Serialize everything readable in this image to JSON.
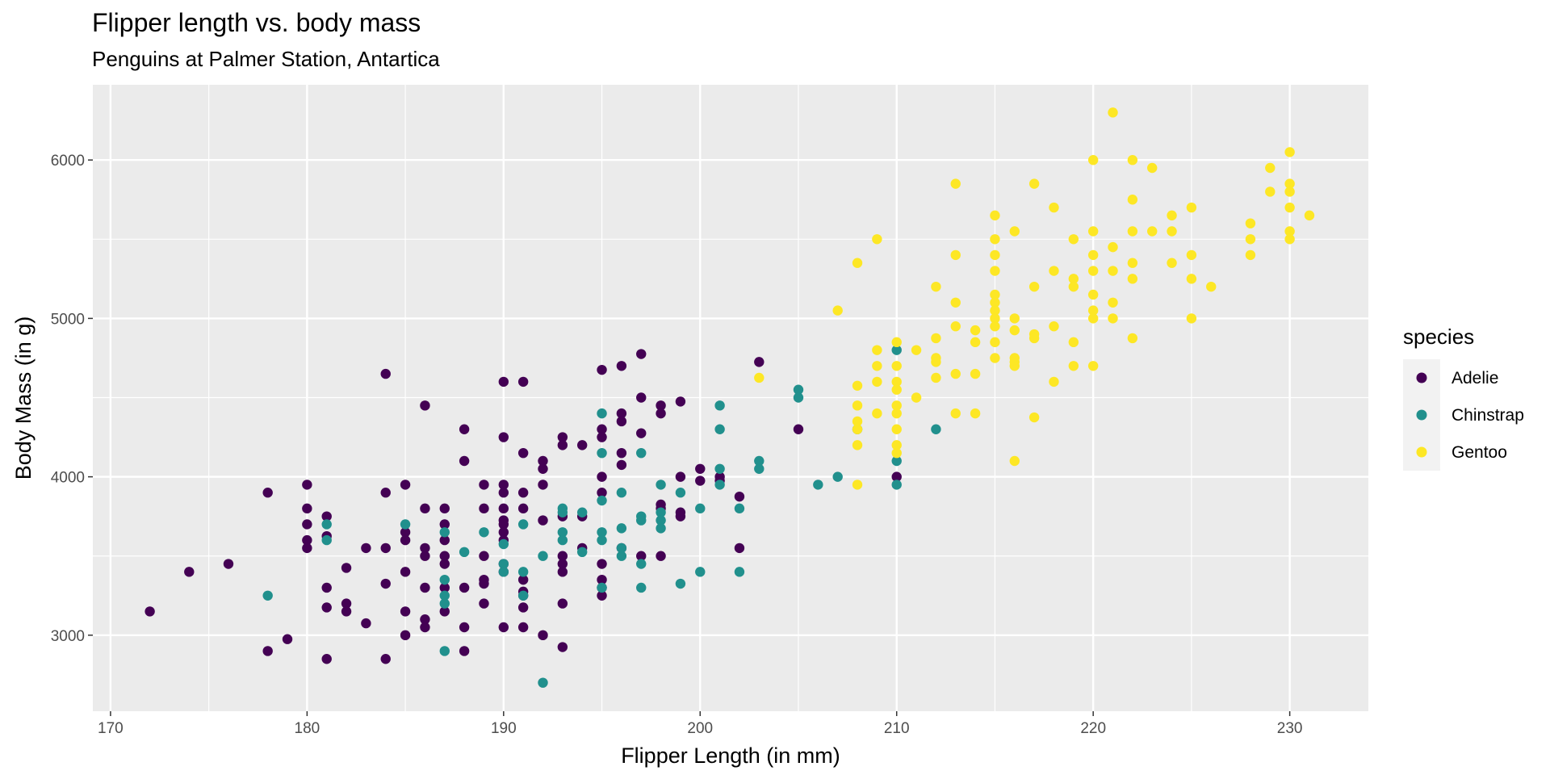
{
  "chart_data": {
    "type": "scatter",
    "title": "Flipper length vs. body mass",
    "subtitle": "Penguins at Palmer Station, Antartica",
    "xlabel": "Flipper Length (in mm)",
    "ylabel": "Body Mass (in g)",
    "xlim": [
      169.1,
      234.0
    ],
    "ylim": [
      2520,
      6475
    ],
    "x_ticks": [
      170,
      180,
      190,
      200,
      210,
      220,
      230
    ],
    "y_ticks": [
      3000,
      4000,
      5000,
      6000
    ],
    "x_tick_labels": [
      "170",
      "180",
      "190",
      "200",
      "210",
      "220",
      "230"
    ],
    "y_tick_labels": [
      "3000",
      "4000",
      "5000",
      "6000"
    ],
    "grid": true,
    "legend": {
      "title": "species",
      "position": "right"
    },
    "series": [
      {
        "name": "Adelie",
        "color": "#440154",
        "points": [
          [
            172,
            3150
          ],
          [
            174,
            3400
          ],
          [
            176,
            3450
          ],
          [
            178,
            3900
          ],
          [
            178,
            2900
          ],
          [
            179,
            2975
          ],
          [
            180,
            3950
          ],
          [
            180,
            3800
          ],
          [
            180,
            3700
          ],
          [
            180,
            3600
          ],
          [
            180,
            3550
          ],
          [
            181,
            3750
          ],
          [
            181,
            3625
          ],
          [
            181,
            3300
          ],
          [
            181,
            3175
          ],
          [
            181,
            2850
          ],
          [
            182,
            3425
          ],
          [
            182,
            3200
          ],
          [
            182,
            3150
          ],
          [
            183,
            3550
          ],
          [
            183,
            3075
          ],
          [
            184,
            4650
          ],
          [
            184,
            3900
          ],
          [
            184,
            3550
          ],
          [
            184,
            3325
          ],
          [
            184,
            2850
          ],
          [
            185,
            3950
          ],
          [
            185,
            3650
          ],
          [
            185,
            3600
          ],
          [
            185,
            3400
          ],
          [
            185,
            3150
          ],
          [
            185,
            3000
          ],
          [
            186,
            4450
          ],
          [
            186,
            3800
          ],
          [
            186,
            3550
          ],
          [
            186,
            3500
          ],
          [
            186,
            3300
          ],
          [
            186,
            3100
          ],
          [
            186,
            3050
          ],
          [
            187,
            3800
          ],
          [
            187,
            3700
          ],
          [
            187,
            3600
          ],
          [
            187,
            3500
          ],
          [
            187,
            3450
          ],
          [
            187,
            3300
          ],
          [
            187,
            3150
          ],
          [
            188,
            4300
          ],
          [
            188,
            4100
          ],
          [
            188,
            3300
          ],
          [
            188,
            3050
          ],
          [
            188,
            2900
          ],
          [
            189,
            3950
          ],
          [
            189,
            3800
          ],
          [
            189,
            3500
          ],
          [
            189,
            3350
          ],
          [
            189,
            3325
          ],
          [
            189,
            3200
          ],
          [
            190,
            4600
          ],
          [
            190,
            4250
          ],
          [
            190,
            3950
          ],
          [
            190,
            3900
          ],
          [
            190,
            3800
          ],
          [
            190,
            3725
          ],
          [
            190,
            3700
          ],
          [
            190,
            3650
          ],
          [
            190,
            3600
          ],
          [
            190,
            3450
          ],
          [
            190,
            3400
          ],
          [
            190,
            3050
          ],
          [
            191,
            4600
          ],
          [
            191,
            4150
          ],
          [
            191,
            3900
          ],
          [
            191,
            3800
          ],
          [
            191,
            3350
          ],
          [
            191,
            3275
          ],
          [
            191,
            3250
          ],
          [
            191,
            3175
          ],
          [
            191,
            3050
          ],
          [
            192,
            4100
          ],
          [
            192,
            4050
          ],
          [
            192,
            3950
          ],
          [
            192,
            3725
          ],
          [
            192,
            3000
          ],
          [
            193,
            4250
          ],
          [
            193,
            4200
          ],
          [
            193,
            3750
          ],
          [
            193,
            3500
          ],
          [
            193,
            3450
          ],
          [
            193,
            3400
          ],
          [
            193,
            3200
          ],
          [
            193,
            2925
          ],
          [
            194,
            4200
          ],
          [
            194,
            3750
          ],
          [
            194,
            3550
          ],
          [
            195,
            4675
          ],
          [
            195,
            4300
          ],
          [
            195,
            4250
          ],
          [
            195,
            4000
          ],
          [
            195,
            3900
          ],
          [
            195,
            3450
          ],
          [
            195,
            3350
          ],
          [
            195,
            3300
          ],
          [
            195,
            3250
          ],
          [
            196,
            4700
          ],
          [
            196,
            4400
          ],
          [
            196,
            4350
          ],
          [
            196,
            4150
          ],
          [
            196,
            4075
          ],
          [
            196,
            3550
          ],
          [
            197,
            4775
          ],
          [
            197,
            4500
          ],
          [
            197,
            4275
          ],
          [
            197,
            3500
          ],
          [
            198,
            4450
          ],
          [
            198,
            4400
          ],
          [
            198,
            3825
          ],
          [
            198,
            3800
          ],
          [
            198,
            3500
          ],
          [
            199,
            4475
          ],
          [
            199,
            4000
          ],
          [
            199,
            3775
          ],
          [
            199,
            3750
          ],
          [
            200,
            4050
          ],
          [
            200,
            3975
          ],
          [
            201,
            4000
          ],
          [
            201,
            3975
          ],
          [
            202,
            3875
          ],
          [
            202,
            3550
          ],
          [
            203,
            4725
          ],
          [
            205,
            4300
          ],
          [
            210,
            4000
          ]
        ]
      },
      {
        "name": "Chinstrap",
        "color": "#21908d",
        "points": [
          [
            178,
            3250
          ],
          [
            181,
            3700
          ],
          [
            181,
            3600
          ],
          [
            185,
            3700
          ],
          [
            187,
            3650
          ],
          [
            187,
            3350
          ],
          [
            187,
            3250
          ],
          [
            187,
            3200
          ],
          [
            187,
            2900
          ],
          [
            188,
            3525
          ],
          [
            189,
            3650
          ],
          [
            190,
            3575
          ],
          [
            190,
            3450
          ],
          [
            190,
            3400
          ],
          [
            191,
            3700
          ],
          [
            191,
            3400
          ],
          [
            191,
            3250
          ],
          [
            192,
            3500
          ],
          [
            192,
            2700
          ],
          [
            193,
            3800
          ],
          [
            193,
            3775
          ],
          [
            193,
            3650
          ],
          [
            193,
            3600
          ],
          [
            194,
            3775
          ],
          [
            194,
            3525
          ],
          [
            195,
            4400
          ],
          [
            195,
            4150
          ],
          [
            195,
            3850
          ],
          [
            195,
            3650
          ],
          [
            195,
            3600
          ],
          [
            195,
            3300
          ],
          [
            196,
            3900
          ],
          [
            196,
            3675
          ],
          [
            196,
            3550
          ],
          [
            196,
            3500
          ],
          [
            197,
            4150
          ],
          [
            197,
            3750
          ],
          [
            197,
            3725
          ],
          [
            197,
            3450
          ],
          [
            197,
            3300
          ],
          [
            198,
            3950
          ],
          [
            198,
            3775
          ],
          [
            198,
            3725
          ],
          [
            198,
            3675
          ],
          [
            199,
            3900
          ],
          [
            199,
            3325
          ],
          [
            200,
            3800
          ],
          [
            200,
            3400
          ],
          [
            201,
            4450
          ],
          [
            201,
            4300
          ],
          [
            201,
            4050
          ],
          [
            201,
            3950
          ],
          [
            202,
            3800
          ],
          [
            202,
            3400
          ],
          [
            203,
            4100
          ],
          [
            203,
            4050
          ],
          [
            205,
            4550
          ],
          [
            205,
            4500
          ],
          [
            206,
            3950
          ],
          [
            207,
            4000
          ],
          [
            208,
            4300
          ],
          [
            210,
            4800
          ],
          [
            210,
            4100
          ],
          [
            210,
            3950
          ],
          [
            212,
            4300
          ]
        ]
      },
      {
        "name": "Gentoo",
        "color": "#fde725",
        "points": [
          [
            203,
            4625
          ],
          [
            207,
            5050
          ],
          [
            208,
            5350
          ],
          [
            208,
            4575
          ],
          [
            208,
            4450
          ],
          [
            208,
            4350
          ],
          [
            208,
            4300
          ],
          [
            208,
            4200
          ],
          [
            208,
            3950
          ],
          [
            209,
            5500
          ],
          [
            209,
            4800
          ],
          [
            209,
            4700
          ],
          [
            209,
            4600
          ],
          [
            209,
            4400
          ],
          [
            210,
            4850
          ],
          [
            210,
            4700
          ],
          [
            210,
            4600
          ],
          [
            210,
            4550
          ],
          [
            210,
            4450
          ],
          [
            210,
            4400
          ],
          [
            210,
            4300
          ],
          [
            210,
            4200
          ],
          [
            210,
            4150
          ],
          [
            211,
            4800
          ],
          [
            211,
            4500
          ],
          [
            212,
            5200
          ],
          [
            212,
            4875
          ],
          [
            212,
            4750
          ],
          [
            212,
            4725
          ],
          [
            212,
            4625
          ],
          [
            213,
            5850
          ],
          [
            213,
            5400
          ],
          [
            213,
            5100
          ],
          [
            213,
            4950
          ],
          [
            213,
            4650
          ],
          [
            213,
            4400
          ],
          [
            214,
            4925
          ],
          [
            214,
            4850
          ],
          [
            214,
            4650
          ],
          [
            214,
            4400
          ],
          [
            215,
            5650
          ],
          [
            215,
            5500
          ],
          [
            215,
            5400
          ],
          [
            215,
            5300
          ],
          [
            215,
            5150
          ],
          [
            215,
            5100
          ],
          [
            215,
            5050
          ],
          [
            215,
            5000
          ],
          [
            215,
            4950
          ],
          [
            215,
            4850
          ],
          [
            215,
            4750
          ],
          [
            216,
            5550
          ],
          [
            216,
            5000
          ],
          [
            216,
            4925
          ],
          [
            216,
            4750
          ],
          [
            216,
            4725
          ],
          [
            216,
            4700
          ],
          [
            216,
            4100
          ],
          [
            217,
            5850
          ],
          [
            217,
            5200
          ],
          [
            217,
            4900
          ],
          [
            217,
            4875
          ],
          [
            217,
            4375
          ],
          [
            218,
            5700
          ],
          [
            218,
            5300
          ],
          [
            218,
            4950
          ],
          [
            218,
            4600
          ],
          [
            219,
            5500
          ],
          [
            219,
            5250
          ],
          [
            219,
            5200
          ],
          [
            219,
            4850
          ],
          [
            219,
            4700
          ],
          [
            220,
            6000
          ],
          [
            220,
            5550
          ],
          [
            220,
            5400
          ],
          [
            220,
            5300
          ],
          [
            220,
            5150
          ],
          [
            220,
            5050
          ],
          [
            220,
            5000
          ],
          [
            220,
            4700
          ],
          [
            221,
            6300
          ],
          [
            221,
            5450
          ],
          [
            221,
            5300
          ],
          [
            221,
            5100
          ],
          [
            221,
            5000
          ],
          [
            222,
            6000
          ],
          [
            222,
            5750
          ],
          [
            222,
            5550
          ],
          [
            222,
            5350
          ],
          [
            222,
            5250
          ],
          [
            222,
            4875
          ],
          [
            223,
            5950
          ],
          [
            223,
            5550
          ],
          [
            224,
            5650
          ],
          [
            224,
            5550
          ],
          [
            224,
            5350
          ],
          [
            225,
            5700
          ],
          [
            225,
            5400
          ],
          [
            225,
            5250
          ],
          [
            225,
            5000
          ],
          [
            226,
            5200
          ],
          [
            228,
            5600
          ],
          [
            228,
            5500
          ],
          [
            228,
            5400
          ],
          [
            229,
            5950
          ],
          [
            229,
            5800
          ],
          [
            230,
            6050
          ],
          [
            230,
            5850
          ],
          [
            230,
            5800
          ],
          [
            230,
            5700
          ],
          [
            230,
            5550
          ],
          [
            230,
            5500
          ],
          [
            231,
            5650
          ]
        ]
      }
    ]
  }
}
